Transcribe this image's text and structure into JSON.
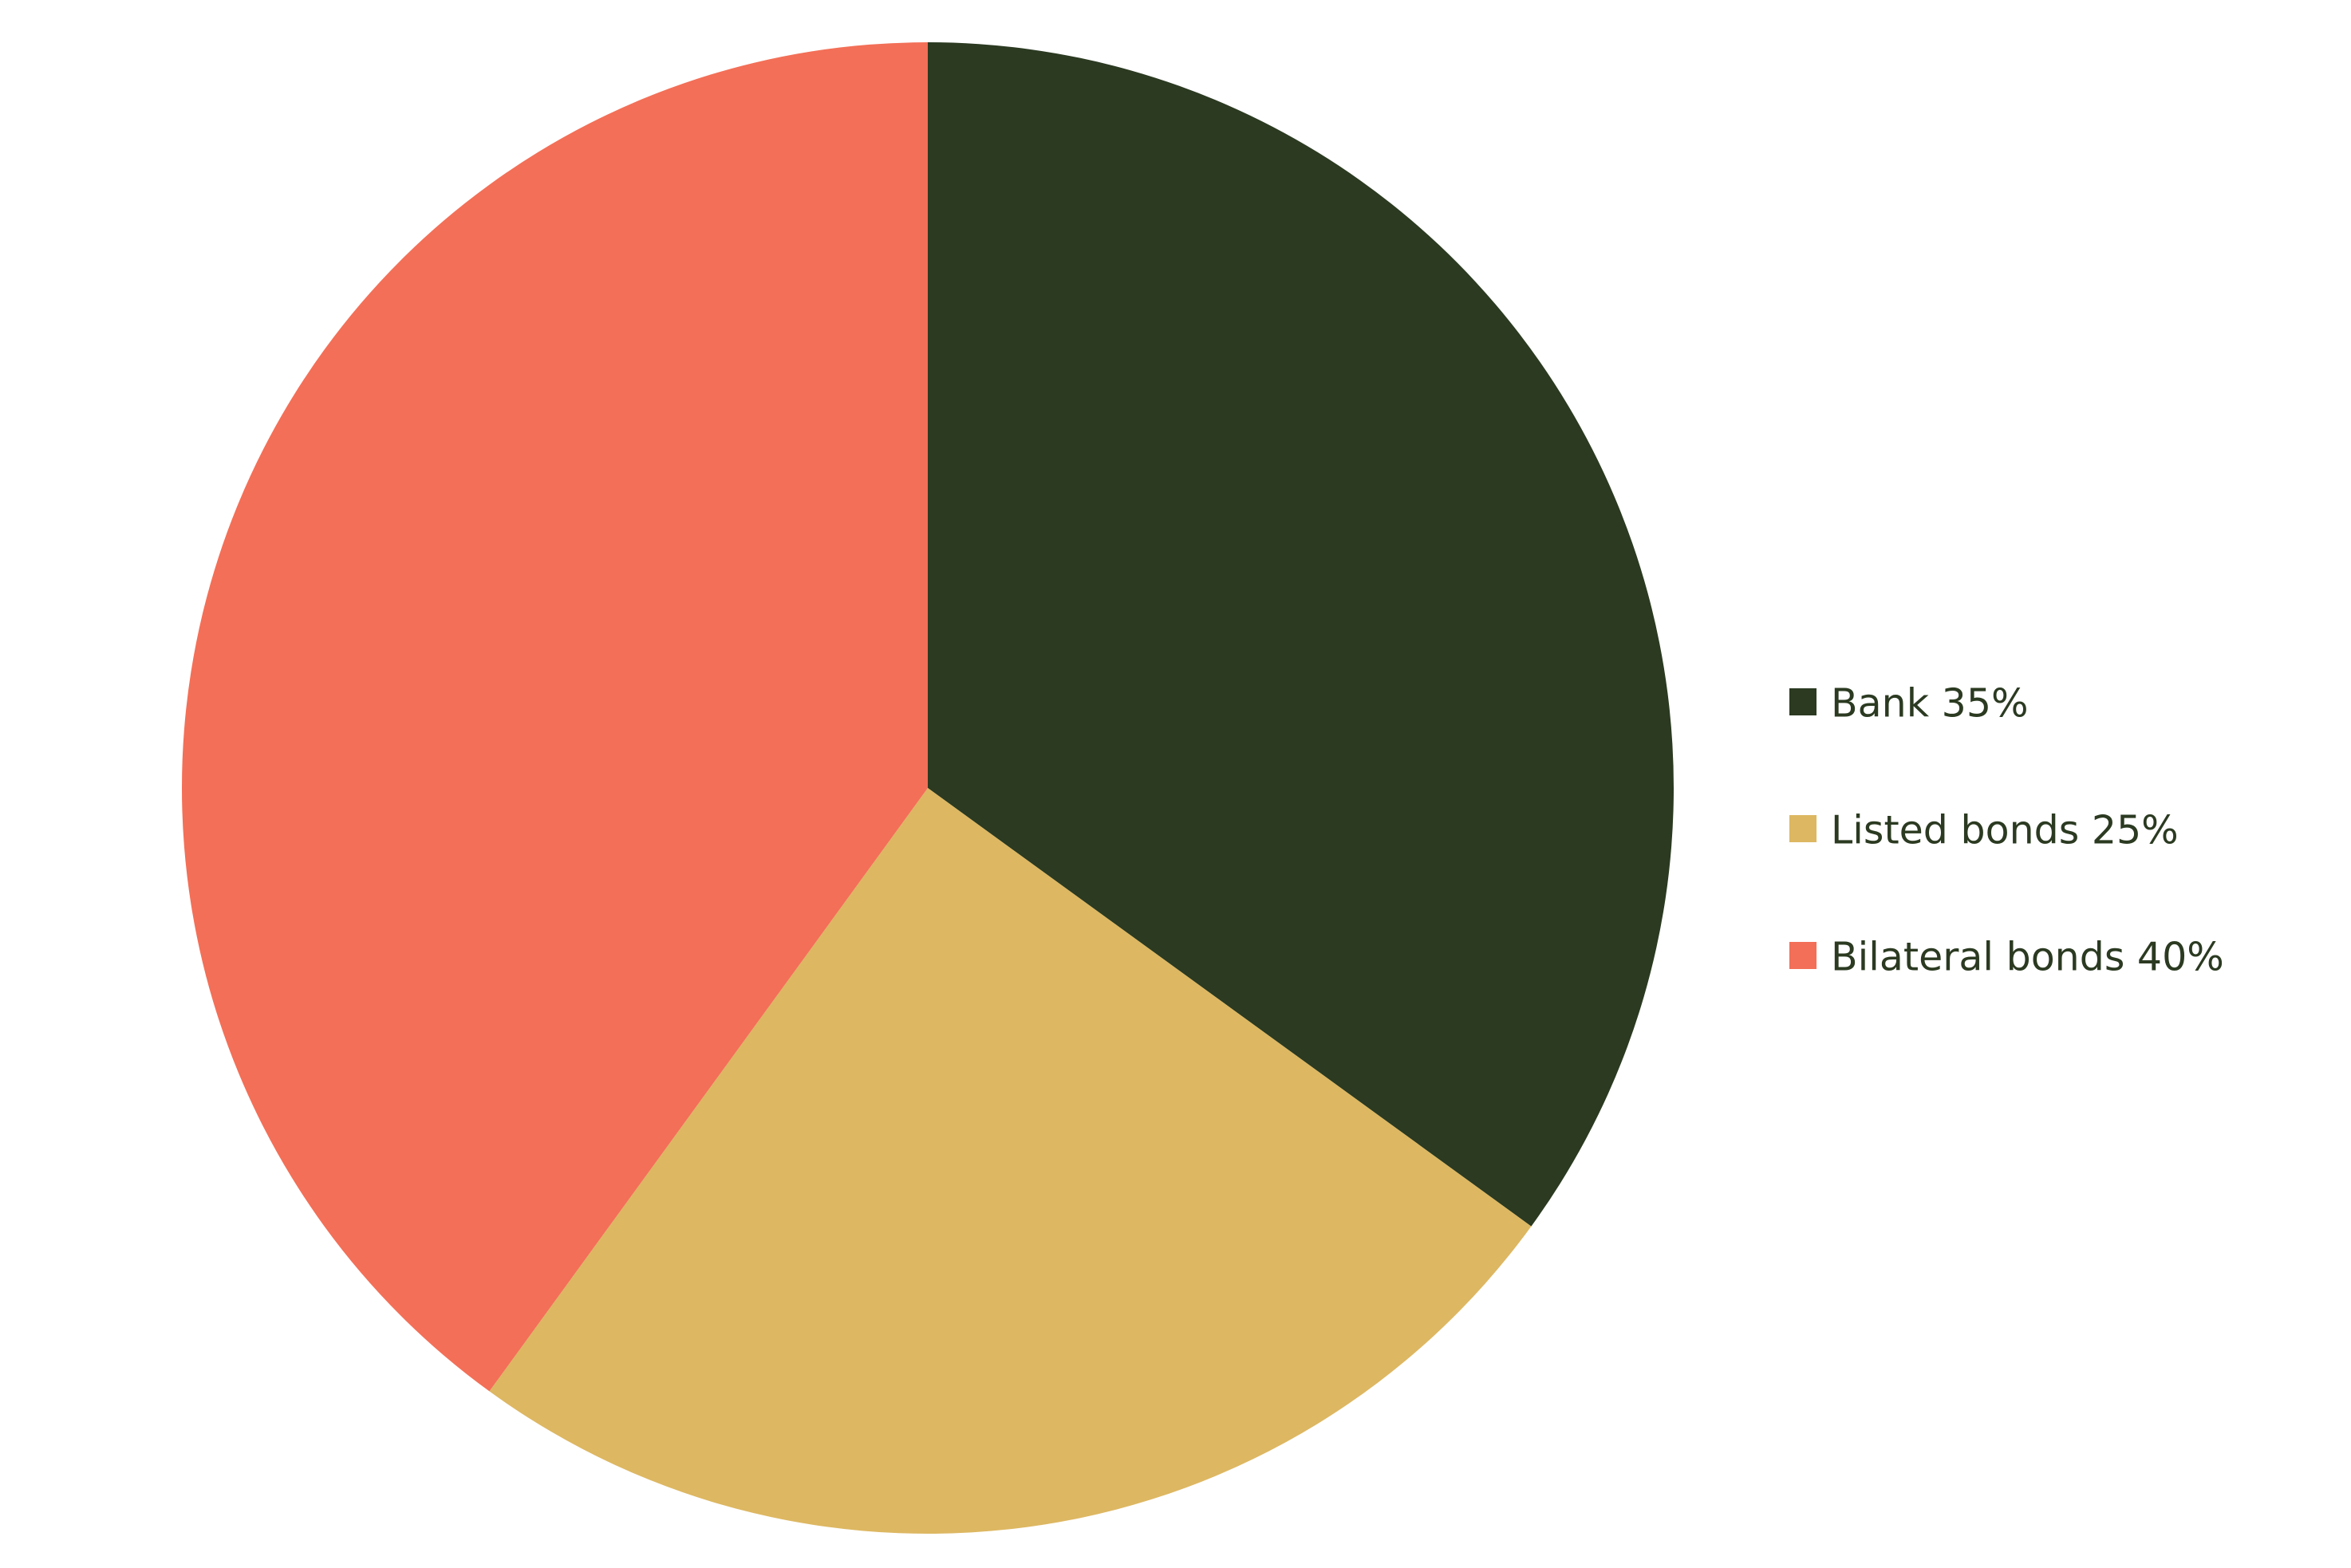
{
  "chart_data": {
    "type": "pie",
    "start_angle": "12 o'clock",
    "direction": "clockwise",
    "slices": [
      {
        "label": "Bank 35%",
        "name": "Bank",
        "value": 35,
        "color": "#2b3a21"
      },
      {
        "label": "Listed bonds 25%",
        "name": "Listed bonds",
        "value": 25,
        "color": "#ddb762"
      },
      {
        "label": "Bilateral bonds 40%",
        "name": "Bilateral bonds",
        "value": 40,
        "color": "#f36f57"
      }
    ],
    "legend": {
      "placement": "right",
      "text_color": "#2b3a21"
    }
  }
}
